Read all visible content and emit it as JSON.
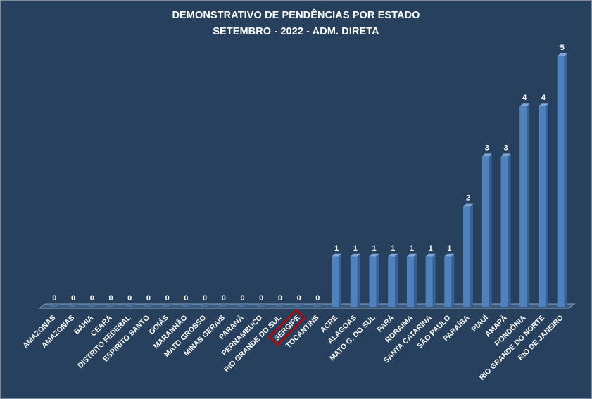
{
  "chart_data": {
    "type": "bar",
    "title": "DEMONSTRATIVO DE PENDÊNCIAS POR ESTADO",
    "subtitle": "SETEMBRO - 2022 - ADM. DIRETA",
    "xlabel": "",
    "ylabel": "",
    "ylim": [
      0,
      5
    ],
    "grid": false,
    "legend": "none",
    "categories": [
      "AMAZONAS",
      "AMAZONAS",
      "BAHIA",
      "CEARÁ",
      "DISTRITO FEDERAL",
      "ESPIRÍTO SANTO",
      "GOIÁS",
      "MARANHÃO",
      "MATO GROSSO",
      "MINAS GERAIS",
      "PARANÁ",
      "PERNAMBUCO",
      "RIO GRANDE DO SUL",
      "SERGIPE",
      "TOCANTINS",
      "ACRE",
      "ALAGOAS",
      "MATO G. DO SUL",
      "PARÁ",
      "RORAIMA",
      "SANTA CATARINA",
      "SÃO PAULO",
      "PARAÍBA",
      "PIAUÍ",
      "AMAPÁ",
      "RONDÔNIA",
      "RIO GRANDE DO NORTE",
      "RIO DE JANEIRO"
    ],
    "values": [
      0,
      0,
      0,
      0,
      0,
      0,
      0,
      0,
      0,
      0,
      0,
      0,
      0,
      0,
      0,
      1,
      1,
      1,
      1,
      1,
      1,
      1,
      2,
      3,
      3,
      4,
      4,
      5
    ],
    "data_labels": true,
    "highlighted_category": "SERGIPE",
    "colors": {
      "background": "#26405e",
      "bar": "#4f81bd",
      "bar_top": "#7fa4d6",
      "bar_side": "#35609a",
      "text": "#ffffff",
      "highlight_box": "#c00000"
    }
  }
}
